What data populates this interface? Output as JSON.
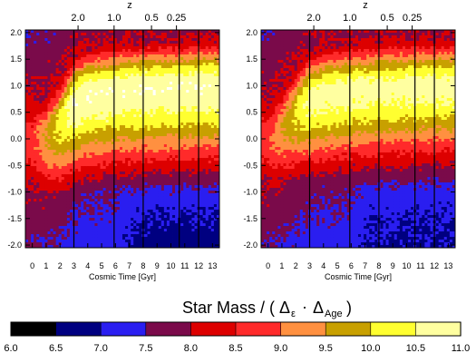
{
  "chart_data": {
    "type": "heatmap",
    "panels": [
      {
        "xlabel": "Cosmic Time   [Gyr]",
        "xlim": [
          -0.5,
          13.5
        ],
        "ylim": [
          -2.05,
          2.05
        ],
        "x_ticks": [
          "0",
          "1",
          "2",
          "3",
          "4",
          "5",
          "6",
          "7",
          "8",
          "9",
          "10",
          "11",
          "12",
          "13"
        ],
        "y_ticks": [
          "-2.0",
          "-1.5",
          "-1.0",
          "-0.5",
          "0.0",
          "0.5",
          "1.0",
          "1.5",
          "2.0"
        ],
        "top_axis_label": "z",
        "top_ticks": [
          {
            "label": "2.0",
            "t": 3.3
          },
          {
            "label": "1.0",
            "t": 5.9
          },
          {
            "label": "0.5",
            "t": 8.6
          },
          {
            "label": "0.25",
            "t": 10.4
          }
        ],
        "vertical_lines_t": [
          3.0,
          5.9,
          8.0,
          10.6,
          12.0
        ],
        "ridge": {
          "t": [
            0,
            1,
            2,
            3,
            4,
            6,
            8,
            10,
            12,
            13
          ],
          "y": [
            0.0,
            0.05,
            0.3,
            0.7,
            0.85,
            0.92,
            0.96,
            0.98,
            1.0,
            1.0
          ]
        },
        "peak_log_mass": 10.9,
        "upper_width": 0.55,
        "lower_width": 1.05,
        "faint_tail_log_mass": 6.7
      },
      {
        "xlabel": "Cosmic Time   [Gyr]",
        "xlim": [
          -0.5,
          13.5
        ],
        "ylim": [
          -2.05,
          2.05
        ],
        "x_ticks": [
          "0",
          "1",
          "2",
          "3",
          "4",
          "5",
          "6",
          "7",
          "8",
          "9",
          "10",
          "11",
          "12",
          "13"
        ],
        "y_ticks": [
          "-2.0",
          "-1.5",
          "-1.0",
          "-0.5",
          "0.0",
          "0.5",
          "1.0",
          "1.5",
          "2.0"
        ],
        "top_axis_label": "z",
        "top_ticks": [
          {
            "label": "2.0",
            "t": 3.3
          },
          {
            "label": "1.0",
            "t": 5.9
          },
          {
            "label": "0.5",
            "t": 8.6
          },
          {
            "label": "0.25",
            "t": 10.4
          }
        ],
        "vertical_lines_t": [
          3.0,
          5.9,
          8.0,
          10.6,
          12.0
        ],
        "ridge": {
          "t": [
            0,
            1,
            2,
            3,
            4,
            6,
            8,
            10,
            12,
            13
          ],
          "y": [
            0.0,
            0.2,
            0.5,
            0.75,
            0.85,
            0.92,
            0.96,
            0.98,
            1.0,
            1.0
          ]
        },
        "peak_log_mass": 10.7,
        "upper_width": 0.55,
        "lower_width": 0.95,
        "faint_tail_log_mass": 6.9
      }
    ],
    "colorbar": {
      "title_main": "Star Mass / ( Δ",
      "title_sub1": "ε",
      "title_dot": "·",
      "title_delta2": "Δ",
      "title_sub2": "Age",
      "title_close": ")",
      "levels": [
        6.0,
        6.5,
        7.0,
        7.5,
        8.0,
        8.5,
        9.0,
        9.5,
        10.0,
        10.5,
        11.0
      ],
      "labels": [
        "6.0",
        "6.5",
        "7.0",
        "7.5",
        "8.0",
        "8.5",
        "9.0",
        "9.5",
        "10.0",
        "10.5",
        "11.0"
      ],
      "colors": [
        "#000000",
        "#000080",
        "#2a1ef0",
        "#7a0a4a",
        "#dd0000",
        "#ff2a2a",
        "#ff9040",
        "#c8a000",
        "#ffff30",
        "#ffffa0",
        "#ffffff"
      ]
    }
  }
}
